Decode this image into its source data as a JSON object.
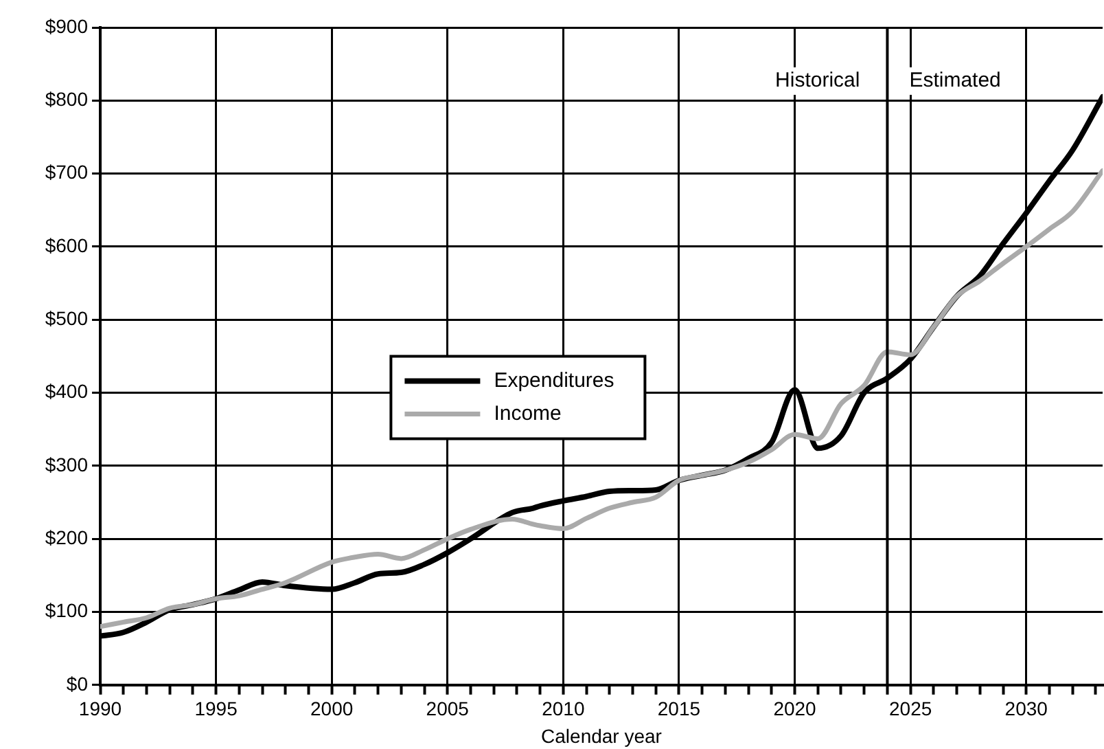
{
  "chart_data": {
    "type": "line",
    "xlabel": "Calendar year",
    "xlim": [
      1990,
      2033.3
    ],
    "xticks": [
      1990,
      {
        "value": 1991,
        "label": null
      },
      {
        "value": 1992,
        "label": null
      },
      {
        "value": 1993,
        "label": null
      },
      {
        "value": 1994,
        "label": null
      },
      1995,
      {
        "value": 1996,
        "label": null
      },
      {
        "value": 1997,
        "label": null
      },
      {
        "value": 1998,
        "label": null
      },
      {
        "value": 1999,
        "label": null
      },
      2000,
      {
        "value": 2001,
        "label": null
      },
      {
        "value": 2002,
        "label": null
      },
      {
        "value": 2003,
        "label": null
      },
      {
        "value": 2004,
        "label": null
      },
      2005,
      {
        "value": 2006,
        "label": null
      },
      {
        "value": 2007,
        "label": null
      },
      {
        "value": 2008,
        "label": null
      },
      {
        "value": 2009,
        "label": null
      },
      2010,
      {
        "value": 2011,
        "label": null
      },
      {
        "value": 2012,
        "label": null
      },
      {
        "value": 2013,
        "label": null
      },
      {
        "value": 2014,
        "label": null
      },
      2015,
      {
        "value": 2016,
        "label": null
      },
      {
        "value": 2017,
        "label": null
      },
      {
        "value": 2018,
        "label": null
      },
      {
        "value": 2019,
        "label": null
      },
      2020,
      {
        "value": 2021,
        "label": null
      },
      {
        "value": 2022,
        "label": null
      },
      {
        "value": 2023,
        "label": null
      },
      {
        "value": 2024,
        "label": null
      },
      2025,
      {
        "value": 2026,
        "label": null
      },
      {
        "value": 2027,
        "label": null
      },
      {
        "value": 2028,
        "label": null
      },
      {
        "value": 2029,
        "label": null
      },
      2030,
      {
        "value": 2031,
        "label": null
      },
      {
        "value": 2032,
        "label": null
      },
      {
        "value": 2033,
        "label": null
      }
    ],
    "ylim": [
      0,
      900
    ],
    "yticks": [
      {
        "value": 0,
        "label": "$0"
      },
      {
        "value": 100,
        "label": "$100"
      },
      {
        "value": 200,
        "label": "$200"
      },
      {
        "value": 300,
        "label": "$300"
      },
      {
        "value": 400,
        "label": "$400"
      },
      {
        "value": 500,
        "label": "$500"
      },
      {
        "value": 600,
        "label": "$600"
      },
      {
        "value": 700,
        "label": "$700"
      },
      {
        "value": 800,
        "label": "$800"
      },
      {
        "value": 900,
        "label": "$900"
      }
    ],
    "x": [
      1990,
      1991,
      1992,
      1993,
      1994,
      1995,
      1996,
      1997,
      1998,
      2000,
      2001,
      2002,
      2003,
      2004,
      2005,
      2006,
      2007.8,
      2008.7,
      2009,
      2010,
      2011,
      2012,
      2013,
      2014,
      2015,
      2016,
      2017,
      2018,
      2019,
      2020,
      2021,
      2022,
      2023,
      2024,
      2025,
      2026,
      2027,
      2028,
      2029,
      2030,
      2031,
      2032,
      2033.3
    ],
    "series": [
      {
        "name": "Expenditures",
        "color": "#000000",
        "values": [
          67,
          72,
          86,
          103,
          110,
          118,
          130,
          141,
          136,
          131,
          140,
          152,
          154,
          165,
          181,
          200,
          236,
          242,
          245,
          252,
          258,
          265,
          266,
          267,
          280,
          287,
          294,
          310,
          332,
          404,
          324,
          341,
          400,
          420,
          446,
          490,
          532,
          560,
          604,
          646,
          690,
          732,
          805
        ]
      },
      {
        "name": "Income",
        "color": "#aaaaaa",
        "values": [
          80,
          86,
          92,
          105,
          110,
          118,
          122,
          131,
          140,
          168,
          175,
          179,
          173,
          185,
          200,
          213,
          227,
          220,
          218,
          214,
          228,
          242,
          250,
          257,
          280,
          287,
          294,
          305,
          322,
          343,
          337,
          385,
          410,
          456,
          452,
          490,
          532,
          553,
          577,
          600,
          624,
          648,
          704
        ]
      }
    ],
    "ref_lines": [
      {
        "axis": "x",
        "value": 2024,
        "color": "#000000"
      }
    ],
    "annotations": [
      "Historical",
      "Estimated"
    ],
    "grid": true,
    "legend": "center left",
    "marker": "none",
    "line_style": "solid"
  }
}
